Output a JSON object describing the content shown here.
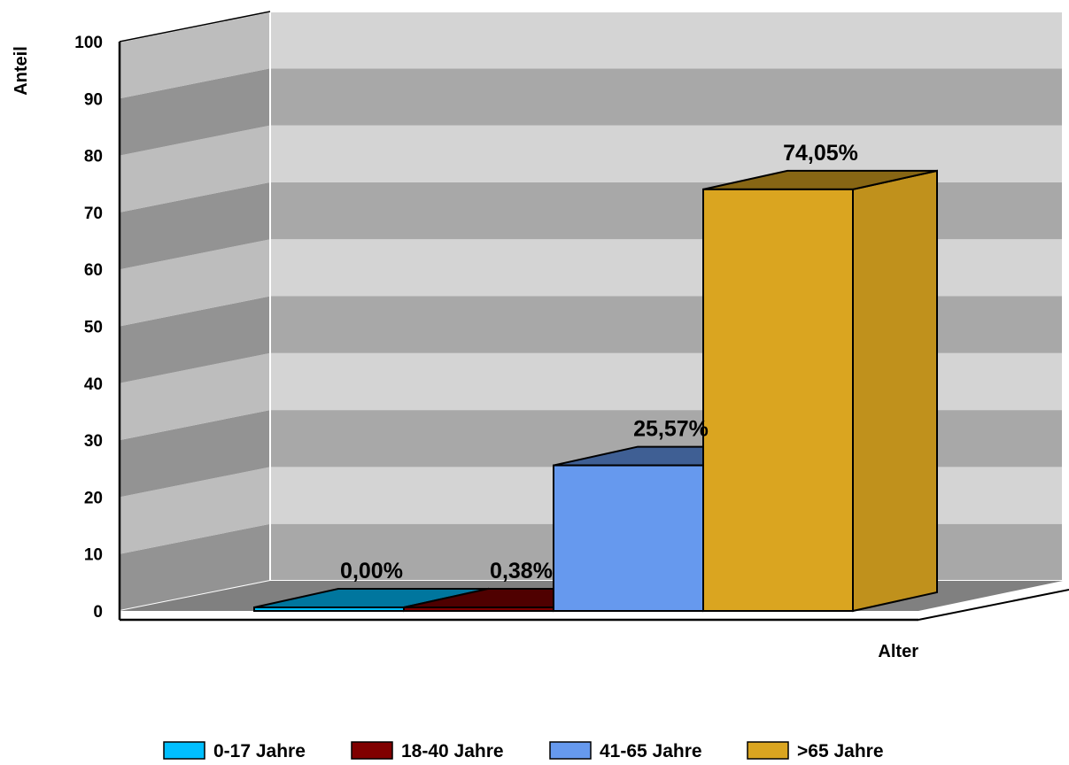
{
  "chart_data": {
    "type": "bar",
    "three_d": true,
    "categories": [
      "0-17 Jahre",
      "18-40 Jahre",
      "41-65 Jahre",
      ">65 Jahre"
    ],
    "values": [
      0.0,
      0.38,
      25.57,
      74.05
    ],
    "data_labels": [
      "0,00%",
      "0,38%",
      "25,57%",
      "74,05%"
    ],
    "xlabel": "Alter",
    "ylabel": "Anteil",
    "ylim": [
      0,
      100
    ],
    "yticks": [
      "0",
      "10",
      "20",
      "30",
      "40",
      "50",
      "60",
      "70",
      "80",
      "90",
      "100"
    ],
    "grid": true,
    "legend_position": "bottom",
    "series_colors": [
      "#00bfff",
      "#800000",
      "#6699ee",
      "#daa520"
    ]
  }
}
